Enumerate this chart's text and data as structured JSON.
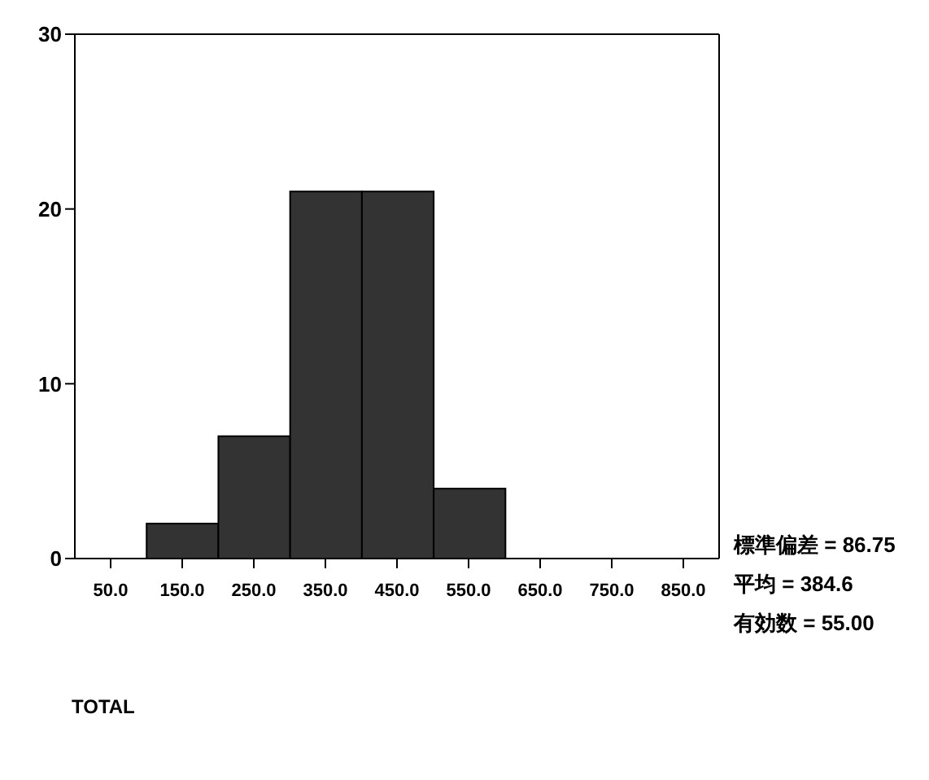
{
  "chart_data": {
    "type": "histogram",
    "xlabel": "TOTAL",
    "bins": [
      100,
      200,
      300,
      400,
      500,
      600
    ],
    "values": [
      2,
      7,
      21,
      21,
      4
    ],
    "color": "#333333",
    "xlim": [
      0,
      900
    ],
    "xticks": [
      {
        "value": 50,
        "label": "50.0"
      },
      {
        "value": 150,
        "label": "150.0"
      },
      {
        "value": 250,
        "label": "250.0"
      },
      {
        "value": 350,
        "label": "350.0"
      },
      {
        "value": 450,
        "label": "450.0"
      },
      {
        "value": 550,
        "label": "550.0"
      },
      {
        "value": 650,
        "label": "650.0"
      },
      {
        "value": 750,
        "label": "750.0"
      },
      {
        "value": 850,
        "label": "850.0"
      }
    ],
    "ylim": [
      0,
      30
    ],
    "yticks": [
      0,
      10,
      20,
      30
    ],
    "annotations": [
      "標準偏差 = 86.75",
      "平均 = 384.6",
      "有効数 = 55.00"
    ]
  }
}
